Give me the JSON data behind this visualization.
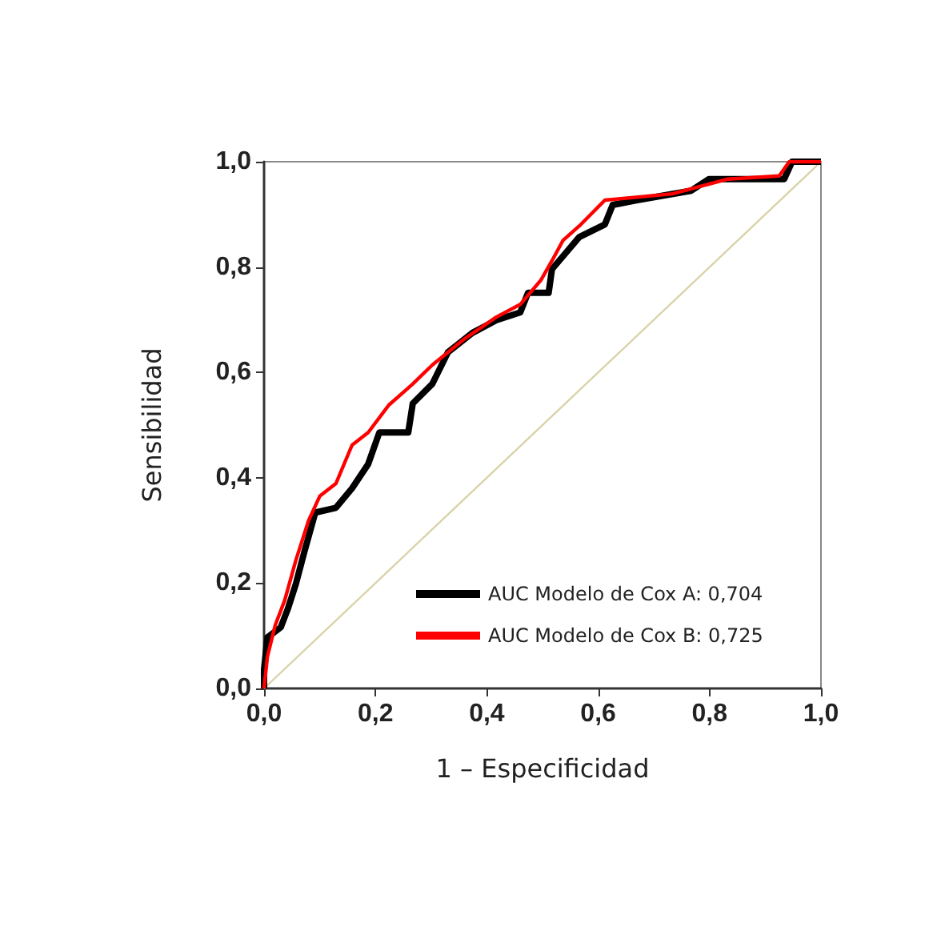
{
  "chart_data": {
    "type": "line",
    "xlabel": "1 – Especificidad",
    "ylabel": "Sensibilidad",
    "xlim": [
      0,
      1
    ],
    "ylim": [
      0,
      1
    ],
    "xticks": [
      {
        "value": 0,
        "label": "0,0"
      },
      {
        "value": 0.2,
        "label": "0,2"
      },
      {
        "value": 0.4,
        "label": "0,4"
      },
      {
        "value": 0.6,
        "label": "0,6"
      },
      {
        "value": 0.8,
        "label": "0,8"
      },
      {
        "value": 1,
        "label": "1,0"
      }
    ],
    "yticks": [
      {
        "value": 0,
        "label": "0,0"
      },
      {
        "value": 0.2,
        "label": "0,2"
      },
      {
        "value": 0.4,
        "label": "0,4"
      },
      {
        "value": 0.6,
        "label": "0,6"
      },
      {
        "value": 0.8,
        "label": "0,8"
      },
      {
        "value": 1,
        "label": "1,0"
      }
    ],
    "grid": false,
    "legend": "bottom right",
    "marker": "none",
    "line_style": "solid",
    "series": [
      {
        "name": "AUC Modelo de Cox A: 0,704",
        "color": "#000000",
        "x": [
          0,
          0,
          0.006,
          0.03,
          0.043,
          0.057,
          0.072,
          0.092,
          0.129,
          0.158,
          0.187,
          0.207,
          0.259,
          0.267,
          0.302,
          0.33,
          0.374,
          0.417,
          0.46,
          0.474,
          0.511,
          0.517,
          0.566,
          0.612,
          0.626,
          0.67,
          0.767,
          0.799,
          0.934,
          0.948,
          1
        ],
        "values": [
          0,
          0.036,
          0.097,
          0.116,
          0.152,
          0.198,
          0.258,
          0.334,
          0.343,
          0.38,
          0.426,
          0.486,
          0.486,
          0.541,
          0.578,
          0.638,
          0.675,
          0.699,
          0.714,
          0.751,
          0.751,
          0.796,
          0.857,
          0.881,
          0.918,
          0.927,
          0.945,
          0.967,
          0.967,
          1,
          1
        ]
      },
      {
        "name": "AUC Modelo de Cox B: 0,725",
        "color": "#ff0000",
        "x": [
          0,
          0.006,
          0.02,
          0.037,
          0.057,
          0.08,
          0.1,
          0.129,
          0.158,
          0.187,
          0.224,
          0.267,
          0.302,
          0.359,
          0.417,
          0.46,
          0.497,
          0.517,
          0.537,
          0.569,
          0.612,
          0.733,
          0.833,
          0.925,
          0.943,
          1
        ],
        "values": [
          0,
          0.06,
          0.12,
          0.167,
          0.243,
          0.319,
          0.365,
          0.389,
          0.462,
          0.486,
          0.538,
          0.578,
          0.614,
          0.663,
          0.705,
          0.729,
          0.775,
          0.812,
          0.851,
          0.881,
          0.927,
          0.939,
          0.967,
          0.973,
          1,
          1
        ]
      },
      {
        "color": "#d9d3a8",
        "x": [
          0,
          1
        ],
        "values": [
          0,
          1
        ]
      }
    ]
  }
}
